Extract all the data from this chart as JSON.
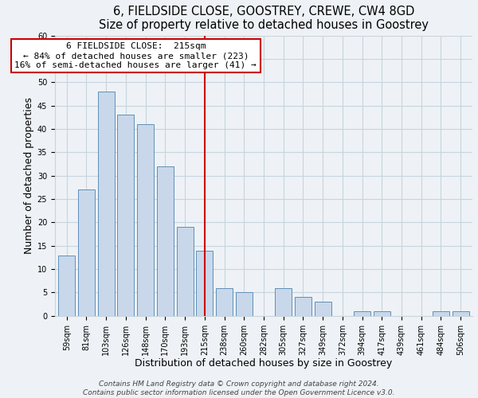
{
  "title": "6, FIELDSIDE CLOSE, GOOSTREY, CREWE, CW4 8GD",
  "subtitle": "Size of property relative to detached houses in Goostrey",
  "xlabel": "Distribution of detached houses by size in Goostrey",
  "ylabel": "Number of detached properties",
  "footer_line1": "Contains HM Land Registry data © Crown copyright and database right 2024.",
  "footer_line2": "Contains public sector information licensed under the Open Government Licence v3.0.",
  "annotation_title": "6 FIELDSIDE CLOSE:  215sqm",
  "annotation_line1": "← 84% of detached houses are smaller (223)",
  "annotation_line2": "16% of semi-detached houses are larger (41) →",
  "bar_labels": [
    "59sqm",
    "81sqm",
    "103sqm",
    "126sqm",
    "148sqm",
    "170sqm",
    "193sqm",
    "215sqm",
    "238sqm",
    "260sqm",
    "282sqm",
    "305sqm",
    "327sqm",
    "349sqm",
    "372sqm",
    "394sqm",
    "417sqm",
    "439sqm",
    "461sqm",
    "484sqm",
    "506sqm"
  ],
  "bar_values": [
    13,
    27,
    48,
    43,
    41,
    32,
    19,
    14,
    6,
    5,
    0,
    6,
    4,
    3,
    0,
    1,
    1,
    0,
    0,
    1,
    1
  ],
  "bar_color": "#c8d8ea",
  "bar_edge_color": "#6090b8",
  "reference_line_index": 7,
  "reference_line_color": "#cc0000",
  "ylim": [
    0,
    60
  ],
  "yticks": [
    0,
    5,
    10,
    15,
    20,
    25,
    30,
    35,
    40,
    45,
    50,
    55,
    60
  ],
  "grid_color": "#c8d4de",
  "background_color": "#eef2f6",
  "annotation_box_color": "#ffffff",
  "annotation_box_edge": "#cc0000",
  "title_fontsize": 10.5,
  "subtitle_fontsize": 9.5,
  "axis_label_fontsize": 9,
  "tick_fontsize": 7,
  "annotation_fontsize": 8,
  "footer_fontsize": 6.5
}
